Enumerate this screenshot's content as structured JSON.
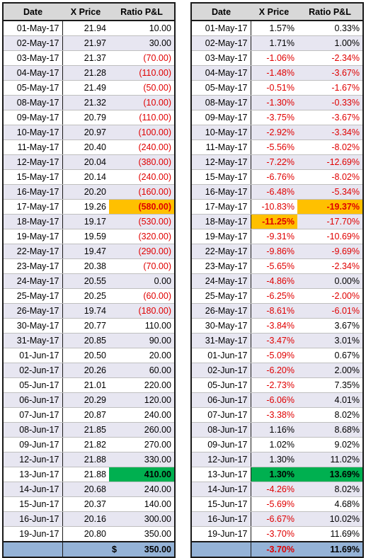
{
  "headers": [
    "Date",
    "X Price",
    "Ratio P&L"
  ],
  "left_rows": [
    [
      "01-May-17",
      "21.94",
      "10.00"
    ],
    [
      "02-May-17",
      "21.97",
      "30.00"
    ],
    [
      "03-May-17",
      "21.37",
      "(70.00)"
    ],
    [
      "04-May-17",
      "21.28",
      "(110.00)"
    ],
    [
      "05-May-17",
      "21.49",
      "(50.00)"
    ],
    [
      "08-May-17",
      "21.32",
      "(10.00)"
    ],
    [
      "09-May-17",
      "20.79",
      "(110.00)"
    ],
    [
      "10-May-17",
      "20.97",
      "(100.00)"
    ],
    [
      "11-May-17",
      "20.40",
      "(240.00)"
    ],
    [
      "12-May-17",
      "20.04",
      "(380.00)"
    ],
    [
      "15-May-17",
      "20.14",
      "(240.00)"
    ],
    [
      "16-May-17",
      "20.20",
      "(160.00)"
    ],
    [
      "17-May-17",
      "19.26",
      "(580.00)"
    ],
    [
      "18-May-17",
      "19.17",
      "(530.00)"
    ],
    [
      "19-May-17",
      "19.59",
      "(320.00)"
    ],
    [
      "22-May-17",
      "19.47",
      "(290.00)"
    ],
    [
      "23-May-17",
      "20.38",
      "(70.00)"
    ],
    [
      "24-May-17",
      "20.55",
      "0.00"
    ],
    [
      "25-May-17",
      "20.25",
      "(60.00)"
    ],
    [
      "26-May-17",
      "19.74",
      "(180.00)"
    ],
    [
      "30-May-17",
      "20.77",
      "110.00"
    ],
    [
      "31-May-17",
      "20.85",
      "90.00"
    ],
    [
      "01-Jun-17",
      "20.50",
      "20.00"
    ],
    [
      "02-Jun-17",
      "20.26",
      "60.00"
    ],
    [
      "05-Jun-17",
      "21.01",
      "220.00"
    ],
    [
      "06-Jun-17",
      "20.29",
      "120.00"
    ],
    [
      "07-Jun-17",
      "20.87",
      "240.00"
    ],
    [
      "08-Jun-17",
      "21.85",
      "260.00"
    ],
    [
      "09-Jun-17",
      "21.82",
      "270.00"
    ],
    [
      "12-Jun-17",
      "21.88",
      "330.00"
    ],
    [
      "13-Jun-17",
      "21.88",
      "410.00"
    ],
    [
      "14-Jun-17",
      "20.68",
      "240.00"
    ],
    [
      "15-Jun-17",
      "20.37",
      "140.00"
    ],
    [
      "16-Jun-17",
      "20.16",
      "300.00"
    ],
    [
      "19-Jun-17",
      "20.80",
      "350.00"
    ]
  ],
  "left_total": {
    "currency": "$",
    "value": "350.00"
  },
  "right_rows": [
    [
      "01-May-17",
      "1.57%",
      "0.33%"
    ],
    [
      "02-May-17",
      "1.71%",
      "1.00%"
    ],
    [
      "03-May-17",
      "-1.06%",
      "-2.34%"
    ],
    [
      "04-May-17",
      "-1.48%",
      "-3.67%"
    ],
    [
      "05-May-17",
      "-0.51%",
      "-1.67%"
    ],
    [
      "08-May-17",
      "-1.30%",
      "-0.33%"
    ],
    [
      "09-May-17",
      "-3.75%",
      "-3.67%"
    ],
    [
      "10-May-17",
      "-2.92%",
      "-3.34%"
    ],
    [
      "11-May-17",
      "-5.56%",
      "-8.02%"
    ],
    [
      "12-May-17",
      "-7.22%",
      "-12.69%"
    ],
    [
      "15-May-17",
      "-6.76%",
      "-8.02%"
    ],
    [
      "16-May-17",
      "-6.48%",
      "-5.34%"
    ],
    [
      "17-May-17",
      "-10.83%",
      "-19.37%"
    ],
    [
      "18-May-17",
      "-11.25%",
      "-17.70%"
    ],
    [
      "19-May-17",
      "-9.31%",
      "-10.69%"
    ],
    [
      "22-May-17",
      "-9.86%",
      "-9.69%"
    ],
    [
      "23-May-17",
      "-5.65%",
      "-2.34%"
    ],
    [
      "24-May-17",
      "-4.86%",
      "0.00%"
    ],
    [
      "25-May-17",
      "-6.25%",
      "-2.00%"
    ],
    [
      "26-May-17",
      "-8.61%",
      "-6.01%"
    ],
    [
      "30-May-17",
      "-3.84%",
      "3.67%"
    ],
    [
      "31-May-17",
      "-3.47%",
      "3.01%"
    ],
    [
      "01-Jun-17",
      "-5.09%",
      "0.67%"
    ],
    [
      "02-Jun-17",
      "-6.20%",
      "2.00%"
    ],
    [
      "05-Jun-17",
      "-2.73%",
      "7.35%"
    ],
    [
      "06-Jun-17",
      "-6.06%",
      "4.01%"
    ],
    [
      "07-Jun-17",
      "-3.38%",
      "8.02%"
    ],
    [
      "08-Jun-17",
      "1.16%",
      "8.68%"
    ],
    [
      "09-Jun-17",
      "1.02%",
      "9.02%"
    ],
    [
      "12-Jun-17",
      "1.30%",
      "11.02%"
    ],
    [
      "13-Jun-17",
      "1.30%",
      "13.69%"
    ],
    [
      "14-Jun-17",
      "-4.26%",
      "8.02%"
    ],
    [
      "15-Jun-17",
      "-5.69%",
      "4.68%"
    ],
    [
      "16-Jun-17",
      "-6.67%",
      "10.02%"
    ],
    [
      "19-Jun-17",
      "-3.70%",
      "11.69%"
    ]
  ],
  "right_total": {
    "x_price": "-3.70%",
    "value": "11.69%"
  },
  "highlights": {
    "left": [
      {
        "row": 12,
        "col": 2,
        "color": "orange"
      },
      {
        "row": 30,
        "col": 2,
        "color": "green"
      }
    ],
    "right": [
      {
        "row": 12,
        "col": 2,
        "color": "orange"
      },
      {
        "row": 13,
        "col": 1,
        "color": "orange"
      },
      {
        "row": 30,
        "col": 1,
        "color": "green"
      },
      {
        "row": 30,
        "col": 2,
        "color": "green"
      }
    ]
  },
  "colors": {
    "header_bg": "#d8d8d8",
    "stripe": "#e7e6f1",
    "total_bg": "#95b3d7",
    "negative": "#e00000",
    "orange": "#ffc000",
    "green": "#00b050"
  }
}
